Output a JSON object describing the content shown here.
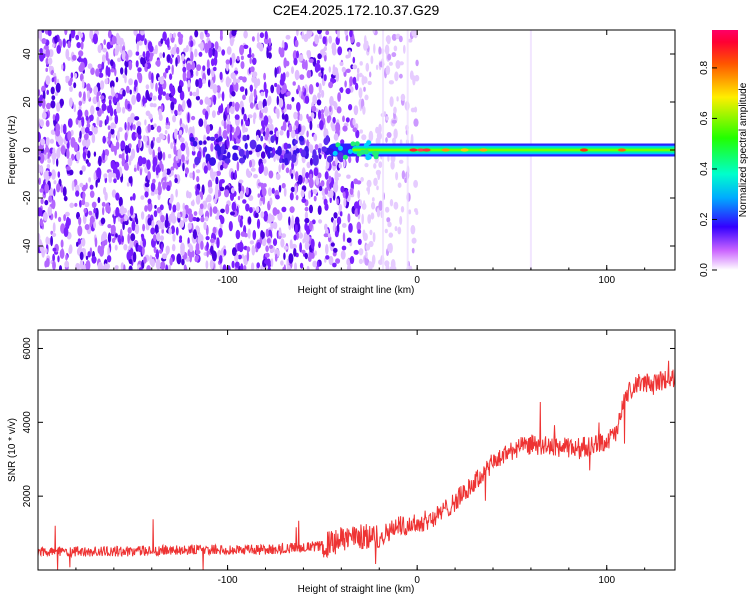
{
  "title": "C2E4.2025.172.10.37.G29",
  "chart_data": [
    {
      "type": "heatmap",
      "xlabel": "Height of straight line (km)",
      "ylabel": "Frequency (Hz)",
      "xlim": [
        -200,
        136
      ],
      "ylim": [
        -50,
        50
      ],
      "xticks": [
        -100,
        0,
        100
      ],
      "yticks": [
        -40,
        -20,
        0,
        20,
        40
      ],
      "colorbar": {
        "label": "Normalized spectral amplitude",
        "range": [
          0,
          0.95
        ],
        "ticks": [
          0.0,
          0.2,
          0.4,
          0.6,
          0.8
        ]
      },
      "features": {
        "noise_region_x": [
          -200,
          -20
        ],
        "signal_band_center_hz": 0,
        "signal_band_start_x": -45
      }
    },
    {
      "type": "line",
      "xlabel": "Height of straight line (km)",
      "ylabel": "SNR (10 * v/v)",
      "xlim": [
        -200,
        136
      ],
      "ylim": [
        0,
        6500
      ],
      "xticks": [
        -100,
        0,
        100
      ],
      "yticks": [
        2000,
        4000,
        6000
      ],
      "series": [
        {
          "color": "#ee3333",
          "x": [
            -200,
            -160,
            -120,
            -80,
            -50,
            -35,
            -20,
            -10,
            0,
            10,
            20,
            30,
            40,
            50,
            60,
            70,
            80,
            90,
            100,
            105,
            110,
            115,
            120,
            125,
            130,
            136
          ],
          "y": [
            500,
            500,
            550,
            550,
            650,
            900,
            900,
            1200,
            1250,
            1450,
            1850,
            2350,
            2900,
            3250,
            3400,
            3350,
            3300,
            3350,
            3500,
            3700,
            4700,
            5000,
            5100,
            5000,
            5150,
            5200
          ]
        }
      ]
    }
  ]
}
